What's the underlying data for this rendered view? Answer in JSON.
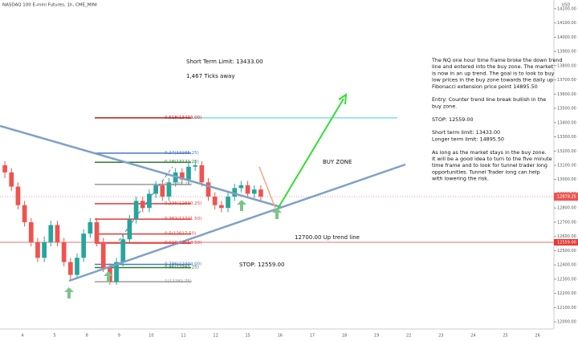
{
  "header": "NASDAQ 100 E-mini Futures, 1h, CME_MINI",
  "currency": "USD",
  "chart_data": {
    "type": "candlestick",
    "categories": [
      "4",
      "5",
      "8",
      "9",
      "10",
      "11",
      "12",
      "15",
      "16",
      "17",
      "18",
      "19",
      "22",
      "23",
      "24",
      "25",
      "26"
    ],
    "candles": [
      [
        13100,
        13130,
        13010,
        13050
      ],
      [
        13050,
        13080,
        12920,
        12950
      ],
      [
        12950,
        12980,
        12790,
        12820
      ],
      [
        12820,
        12850,
        12670,
        12700
      ],
      [
        12700,
        12730,
        12530,
        12560
      ],
      [
        12560,
        12590,
        12420,
        12450
      ],
      [
        12450,
        12600,
        12420,
        12560
      ],
      [
        12560,
        12710,
        12530,
        12680
      ],
      [
        12680,
        12710,
        12530,
        12560
      ],
      [
        12560,
        12590,
        12390,
        12420
      ],
      [
        12420,
        12450,
        12300,
        12330
      ],
      [
        12330,
        12480,
        12300,
        12450
      ],
      [
        12450,
        12650,
        12420,
        12620
      ],
      [
        12620,
        12730,
        12590,
        12700
      ],
      [
        12700,
        12730,
        12530,
        12560
      ],
      [
        12560,
        12590,
        12350,
        12380
      ],
      [
        12380,
        12410,
        12260,
        12281
      ],
      [
        12281,
        12450,
        12260,
        12420
      ],
      [
        12420,
        12610,
        12390,
        12580
      ],
      [
        12580,
        12750,
        12550,
        12720
      ],
      [
        12720,
        12880,
        12690,
        12850
      ],
      [
        12850,
        12880,
        12770,
        12800
      ],
      [
        12800,
        12930,
        12770,
        12900
      ],
      [
        12900,
        12990,
        12870,
        12960
      ],
      [
        12960,
        12990,
        12850,
        12880
      ],
      [
        12880,
        13010,
        12850,
        12980
      ],
      [
        12980,
        13080,
        12950,
        13050
      ],
      [
        13050,
        13080,
        12970,
        13000
      ],
      [
        13000,
        13120,
        12970,
        13090
      ],
      [
        13090,
        13130,
        13060,
        13100
      ],
      [
        13100,
        13130,
        12950,
        12980
      ],
      [
        12980,
        13010,
        12850,
        12880
      ],
      [
        12880,
        12910,
        12790,
        12820
      ],
      [
        12820,
        12850,
        12770,
        12800
      ],
      [
        12800,
        12910,
        12770,
        12880
      ],
      [
        12880,
        12970,
        12850,
        12940
      ],
      [
        12940,
        12990,
        12910,
        12960
      ],
      [
        12960,
        12990,
        12870,
        12900
      ],
      [
        12900,
        12960,
        12870,
        12930
      ],
      [
        12930,
        12960,
        12850,
        12879.25
      ]
    ],
    "up_color": "#26a69a",
    "down_color": "#ef5350",
    "ylim": [
      11950,
      14250
    ],
    "yticks": [
      {
        "value": 12000,
        "label": "12000.00"
      },
      {
        "value": 12100,
        "label": "12100.00"
      },
      {
        "value": 12200,
        "label": "12200.00"
      },
      {
        "value": 12300,
        "label": "12300.00"
      },
      {
        "value": 12400,
        "label": "12400.00"
      },
      {
        "value": 12500,
        "label": "12500.00"
      },
      {
        "value": 12600,
        "label": "12600.00"
      },
      {
        "value": 12700,
        "label": "12700.00"
      },
      {
        "value": 12800,
        "label": "12800.00"
      },
      {
        "value": 12900,
        "label": "12900.00"
      },
      {
        "value": 13000,
        "label": "13000.00"
      },
      {
        "value": 13100,
        "label": "13100.00"
      },
      {
        "value": 13200,
        "label": "13200.00"
      },
      {
        "value": 13300,
        "label": "13300.00"
      },
      {
        "value": 13400,
        "label": "13400.00"
      },
      {
        "value": 13500,
        "label": "13500.00"
      },
      {
        "value": 13600,
        "label": "13600.00"
      },
      {
        "value": 13700,
        "label": "13700.00"
      },
      {
        "value": 13800,
        "label": "13800.00"
      },
      {
        "value": 13900,
        "label": "13900.00"
      },
      {
        "value": 14000,
        "label": "14000.00"
      },
      {
        "value": 14100,
        "label": "14100.00"
      },
      {
        "value": 14200,
        "label": "14200.00"
      }
    ],
    "fib_levels": [
      {
        "value": 13433,
        "label": "0.618(13433.00)",
        "color": "#b71c1c"
      },
      {
        "value": 13185.25,
        "label": "0.27(13185.25)",
        "color": "#4a78c2"
      },
      {
        "value": 13121.25,
        "label": "0.18(13121.25)",
        "color": "#2e7d32"
      },
      {
        "value": 12965.75,
        "label": "0(12965.75)",
        "color": "#999999"
      },
      {
        "value": 12830.25,
        "label": "0.236(12830.25)",
        "color": "#e53935"
      },
      {
        "value": 12721.5,
        "label": "0.382(12721.50)",
        "color": "#e53935"
      },
      {
        "value": 12617.5,
        "label": "0.5(12617.50)",
        "color": "#e53935"
      },
      {
        "value": 12553.5,
        "label": "0.618(12553.50)",
        "color": "#e53935"
      },
      {
        "value": 12404,
        "label": "0.786(12404.00)",
        "color": "#4a78c2"
      },
      {
        "value": 12381.25,
        "label": "0.86(12381.25)",
        "color": "#2e7d32"
      },
      {
        "value": 12281.75,
        "label": "1(12281.75)",
        "color": "#999999"
      }
    ],
    "current_price": {
      "value": 12879.25,
      "label": "12879.25"
    },
    "stop_price": {
      "value": 12559,
      "label": "12559.00"
    },
    "target_color": "#80deea"
  },
  "notes": {
    "short_term": "Short Term Limit: 13433.00",
    "ticks_away": "1,467 Ticks away",
    "buy_zone": "BUY ZONE",
    "trend_line": "12700.00 Up trend line",
    "stop": "STOP: 12559.00",
    "analysis": [
      "The NQ one hour time frame broke the down trend",
      "line and entered into the buy zone. The market",
      "is now in an up trend. The goal is to look to buy",
      "low prices in the buy zone towards the daily up",
      "Fibonacci extension price point 14895.50",
      "",
      "Entry: Counter trend line break bullish in the",
      "buy zone.",
      "",
      "STOP: 12559.00",
      "",
      "Short term limit: 13433.00",
      "Longer term limit: 14895.50",
      "",
      "As long as the market stays in the buy zone.",
      "It will be a good idea to turn to the five minute",
      "time frame and to look for tunnel trader long",
      "opportunities. Tunnel Trader long can help",
      "with lowering the risk."
    ]
  }
}
